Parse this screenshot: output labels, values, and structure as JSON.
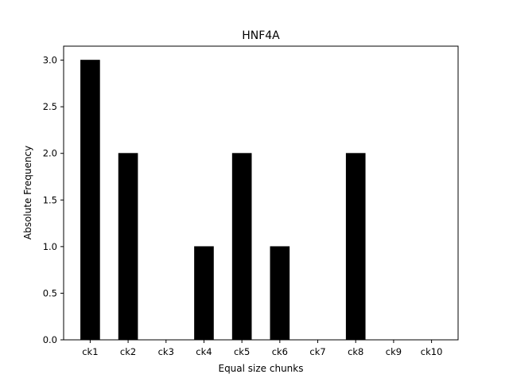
{
  "chart_data": {
    "type": "bar",
    "title": "HNF4A",
    "xlabel": "Equal size chunks",
    "ylabel": "Absolute Frequency",
    "categories": [
      "ck1",
      "ck2",
      "ck3",
      "ck4",
      "ck5",
      "ck6",
      "ck7",
      "ck8",
      "ck9",
      "ck10"
    ],
    "values": [
      3,
      2,
      0,
      1,
      2,
      1,
      0,
      2,
      0,
      0
    ],
    "ylim": [
      0,
      3.15
    ],
    "yticks": [
      "0.0",
      "0.5",
      "1.0",
      "1.5",
      "2.0",
      "2.5",
      "3.0"
    ],
    "grid": false,
    "bar_color": "#000000"
  }
}
